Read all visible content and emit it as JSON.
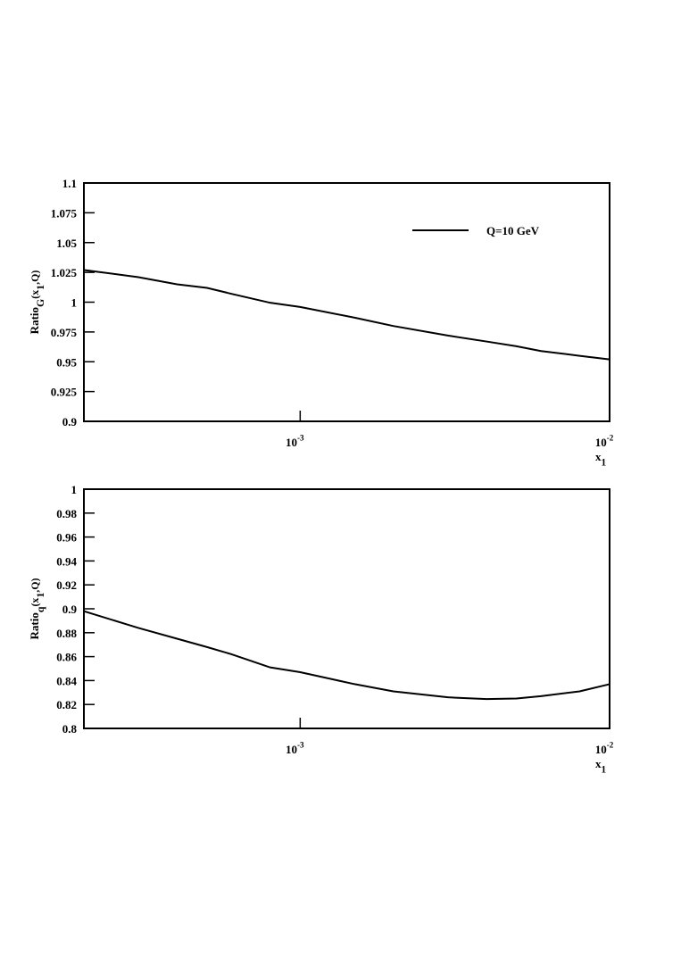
{
  "chart_data": [
    {
      "type": "line",
      "x_label": "x_{1}",
      "y_label": "Ratio_{G}(x_{1},Q)",
      "x": [
        0.0002,
        0.0003,
        0.0004,
        0.0005,
        0.0006,
        0.0008,
        0.001,
        0.0015,
        0.002,
        0.003,
        0.004,
        0.005,
        0.006,
        0.008,
        0.01
      ],
      "series": [
        {
          "name": "Q=10 GeV",
          "color": "#000000",
          "values": [
            1.027,
            1.021,
            1.015,
            1.012,
            1.007,
            0.9995,
            0.996,
            0.987,
            0.98,
            0.972,
            0.967,
            0.963,
            0.959,
            0.955,
            0.952
          ]
        }
      ],
      "xlim": [
        0.0002,
        0.01
      ],
      "x_log": true,
      "xticks": [
        {
          "value": 0.001,
          "label": "10^{-3}"
        },
        {
          "value": 0.01,
          "label": "10^{-2}"
        }
      ],
      "ylim": [
        0.9,
        1.1
      ],
      "yticks": [
        0.9,
        0.925,
        0.95,
        0.975,
        1,
        1.025,
        1.05,
        1.075,
        1.1
      ],
      "legend": "upper right"
    },
    {
      "type": "line",
      "x_label": "x_{1}",
      "y_label": "Ratio_{q}(x_{1},Q)",
      "x": [
        0.0002,
        0.0003,
        0.0004,
        0.0005,
        0.0006,
        0.0008,
        0.001,
        0.0015,
        0.002,
        0.003,
        0.004,
        0.005,
        0.006,
        0.008,
        0.01
      ],
      "series": [
        {
          "color": "#000000",
          "values": [
            0.898,
            0.884,
            0.875,
            0.868,
            0.862,
            0.851,
            0.847,
            0.837,
            0.831,
            0.826,
            0.8245,
            0.825,
            0.827,
            0.831,
            0.837
          ]
        }
      ],
      "xlim": [
        0.0002,
        0.01
      ],
      "x_log": true,
      "xticks": [
        {
          "value": 0.001,
          "label": "10^{-3}"
        },
        {
          "value": 0.01,
          "label": "10^{-2}"
        }
      ],
      "ylim": [
        0.8,
        1
      ],
      "yticks": [
        0.8,
        0.82,
        0.84,
        0.86,
        0.88,
        0.9,
        0.92,
        0.94,
        0.96,
        0.98,
        1
      ]
    }
  ]
}
